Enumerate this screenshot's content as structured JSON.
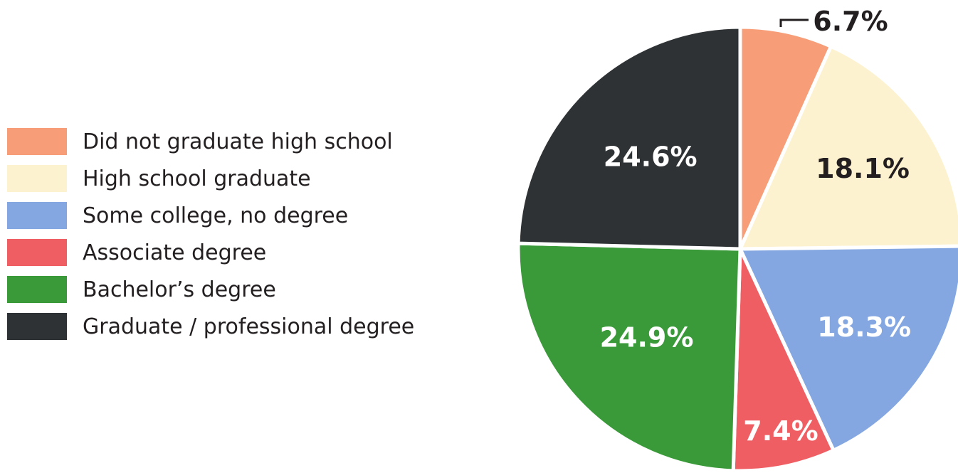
{
  "chart_data": {
    "type": "pie",
    "categories": [
      "Did not graduate high school",
      "High school graduate",
      "Some college, no degree",
      "Associate degree",
      "Bachelor’s degree",
      "Graduate / professional degree"
    ],
    "values": [
      6.7,
      18.1,
      18.3,
      7.4,
      24.9,
      24.6
    ],
    "value_labels": [
      "6.7%",
      "18.1%",
      "18.3%",
      "7.4%",
      "24.9%",
      "24.6%"
    ],
    "colors": [
      "#f79e78",
      "#fdf2cf",
      "#84a7e1",
      "#ef5e63",
      "#3a9a3a",
      "#2e3234"
    ],
    "label_colors": [
      "#231f20",
      "#231f20",
      "#ffffff",
      "#ffffff",
      "#ffffff",
      "#ffffff"
    ],
    "start_angle": "12 o'clock",
    "direction": "clockwise",
    "legend_position": "left",
    "title": ""
  }
}
